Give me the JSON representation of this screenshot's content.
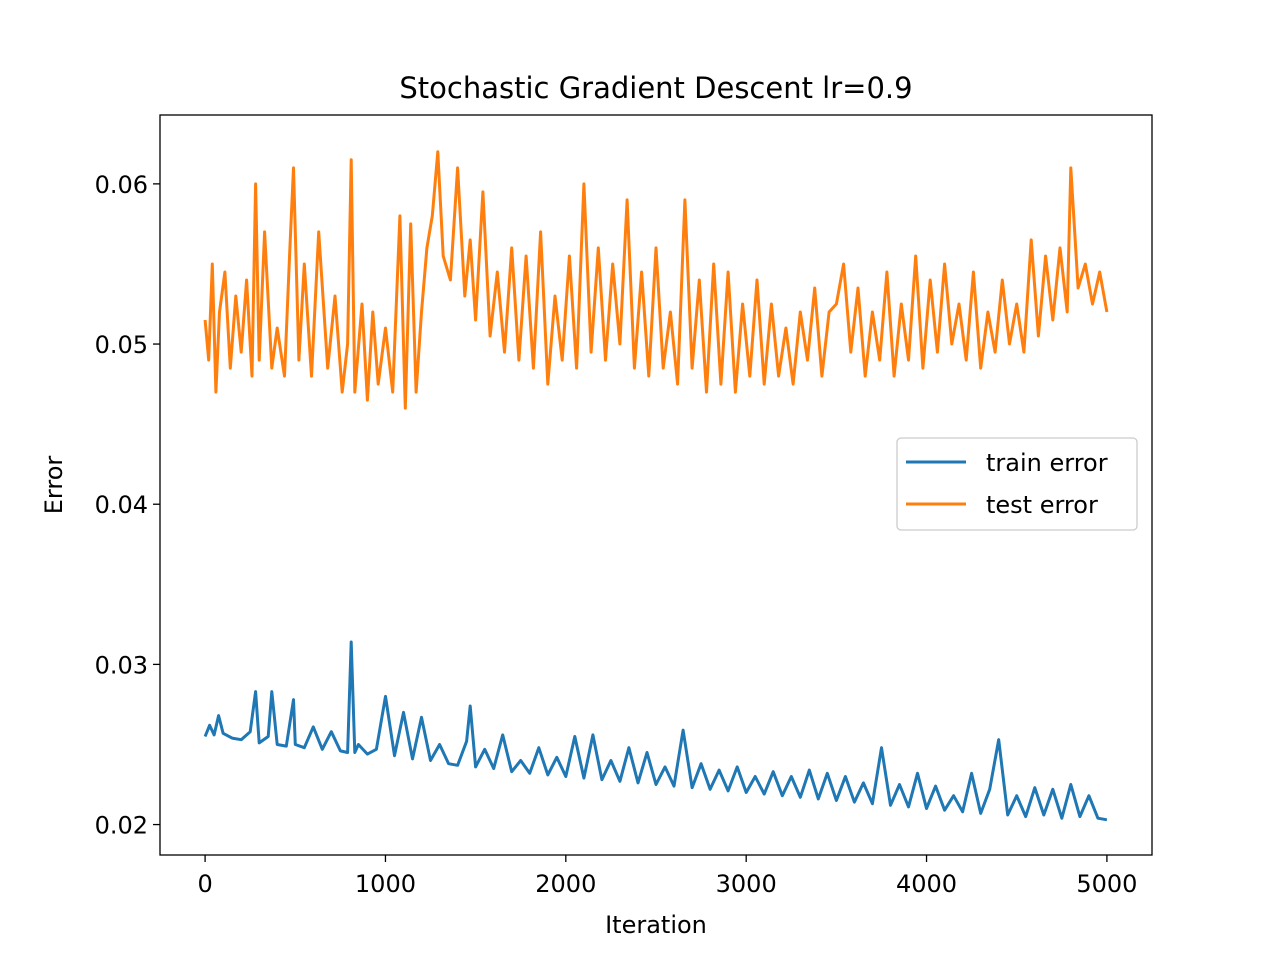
{
  "chart_data": {
    "type": "line",
    "title": "Stochastic Gradient Descent lr=0.9",
    "xlabel": "Iteration",
    "ylabel": "Error",
    "xlim": [
      -250,
      5250
    ],
    "ylim": [
      0.0181,
      0.0643
    ],
    "xticks": [
      0,
      1000,
      2000,
      3000,
      4000,
      5000
    ],
    "yticks": [
      0.02,
      0.03,
      0.04,
      0.05,
      0.06
    ],
    "xtick_labels": [
      "0",
      "1000",
      "2000",
      "3000",
      "4000",
      "5000"
    ],
    "ytick_labels": [
      "0.02",
      "0.03",
      "0.04",
      "0.05",
      "0.06"
    ],
    "grid": false,
    "legend_position": "center-right",
    "series": [
      {
        "name": "train error",
        "color": "#1f77b4",
        "x": [
          0,
          25,
          50,
          75,
          100,
          150,
          200,
          250,
          280,
          300,
          350,
          370,
          400,
          450,
          490,
          500,
          550,
          600,
          650,
          700,
          750,
          790,
          810,
          830,
          850,
          900,
          950,
          1000,
          1050,
          1100,
          1150,
          1200,
          1250,
          1300,
          1350,
          1400,
          1450,
          1470,
          1500,
          1550,
          1600,
          1650,
          1700,
          1750,
          1800,
          1850,
          1900,
          1950,
          2000,
          2050,
          2100,
          2150,
          2200,
          2250,
          2300,
          2350,
          2400,
          2450,
          2500,
          2550,
          2600,
          2650,
          2700,
          2750,
          2800,
          2850,
          2900,
          2950,
          3000,
          3050,
          3100,
          3150,
          3200,
          3250,
          3300,
          3350,
          3400,
          3450,
          3500,
          3550,
          3600,
          3650,
          3700,
          3750,
          3800,
          3850,
          3900,
          3950,
          4000,
          4050,
          4100,
          4150,
          4200,
          4250,
          4300,
          4350,
          4400,
          4450,
          4500,
          4550,
          4600,
          4650,
          4700,
          4750,
          4800,
          4850,
          4900,
          4950,
          5000
        ],
        "y": [
          0.0255,
          0.0262,
          0.0256,
          0.0268,
          0.0257,
          0.0254,
          0.0253,
          0.0258,
          0.0283,
          0.0251,
          0.0255,
          0.0283,
          0.025,
          0.0249,
          0.0278,
          0.025,
          0.0248,
          0.0261,
          0.0247,
          0.0258,
          0.0246,
          0.0245,
          0.0314,
          0.0245,
          0.025,
          0.0244,
          0.0247,
          0.028,
          0.0243,
          0.027,
          0.0241,
          0.0267,
          0.024,
          0.025,
          0.0238,
          0.0237,
          0.0252,
          0.0274,
          0.0236,
          0.0247,
          0.0235,
          0.0256,
          0.0233,
          0.024,
          0.0232,
          0.0248,
          0.0231,
          0.0242,
          0.023,
          0.0255,
          0.0229,
          0.0256,
          0.0228,
          0.024,
          0.0227,
          0.0248,
          0.0226,
          0.0245,
          0.0225,
          0.0236,
          0.0224,
          0.0259,
          0.0223,
          0.0238,
          0.0222,
          0.0234,
          0.0221,
          0.0236,
          0.022,
          0.023,
          0.0219,
          0.0233,
          0.0218,
          0.023,
          0.0217,
          0.0234,
          0.0216,
          0.0232,
          0.0215,
          0.023,
          0.0214,
          0.0226,
          0.0213,
          0.0248,
          0.0212,
          0.0225,
          0.0211,
          0.0232,
          0.021,
          0.0224,
          0.0209,
          0.0218,
          0.0208,
          0.0232,
          0.0207,
          0.0222,
          0.0253,
          0.0206,
          0.0218,
          0.0205,
          0.0223,
          0.0206,
          0.0222,
          0.0204,
          0.0225,
          0.0205,
          0.0218,
          0.0204,
          0.0203
        ]
      },
      {
        "name": "test error",
        "color": "#ff7f0e",
        "x": [
          0,
          20,
          40,
          60,
          80,
          110,
          140,
          170,
          200,
          230,
          260,
          280,
          300,
          330,
          370,
          400,
          440,
          470,
          490,
          520,
          550,
          590,
          630,
          680,
          720,
          760,
          790,
          810,
          830,
          870,
          900,
          930,
          960,
          1000,
          1040,
          1080,
          1110,
          1140,
          1170,
          1200,
          1230,
          1260,
          1290,
          1320,
          1360,
          1400,
          1440,
          1470,
          1500,
          1540,
          1580,
          1620,
          1660,
          1700,
          1740,
          1780,
          1820,
          1860,
          1900,
          1940,
          1980,
          2020,
          2060,
          2100,
          2140,
          2180,
          2220,
          2260,
          2300,
          2340,
          2380,
          2420,
          2460,
          2500,
          2540,
          2580,
          2620,
          2660,
          2700,
          2740,
          2780,
          2820,
          2860,
          2900,
          2940,
          2980,
          3020,
          3060,
          3100,
          3140,
          3180,
          3220,
          3260,
          3300,
          3340,
          3380,
          3420,
          3460,
          3500,
          3540,
          3580,
          3620,
          3660,
          3700,
          3740,
          3780,
          3820,
          3860,
          3900,
          3940,
          3980,
          4020,
          4060,
          4100,
          4140,
          4180,
          4220,
          4260,
          4300,
          4340,
          4380,
          4420,
          4460,
          4500,
          4540,
          4580,
          4620,
          4660,
          4700,
          4740,
          4780,
          4800,
          4840,
          4880,
          4920,
          4960,
          5000
        ],
        "y": [
          0.0515,
          0.049,
          0.055,
          0.047,
          0.052,
          0.0545,
          0.0485,
          0.053,
          0.0495,
          0.054,
          0.048,
          0.06,
          0.049,
          0.057,
          0.0485,
          0.051,
          0.048,
          0.056,
          0.061,
          0.049,
          0.055,
          0.048,
          0.057,
          0.0485,
          0.053,
          0.047,
          0.05,
          0.0615,
          0.047,
          0.0525,
          0.0465,
          0.052,
          0.0475,
          0.051,
          0.047,
          0.058,
          0.046,
          0.0575,
          0.047,
          0.052,
          0.056,
          0.058,
          0.062,
          0.0555,
          0.054,
          0.061,
          0.053,
          0.0565,
          0.0515,
          0.0595,
          0.0505,
          0.0545,
          0.0495,
          0.056,
          0.049,
          0.0555,
          0.0485,
          0.057,
          0.0475,
          0.053,
          0.049,
          0.0555,
          0.0485,
          0.06,
          0.0495,
          0.056,
          0.049,
          0.055,
          0.05,
          0.059,
          0.0485,
          0.0545,
          0.048,
          0.056,
          0.0485,
          0.052,
          0.0475,
          0.059,
          0.0485,
          0.054,
          0.047,
          0.055,
          0.0475,
          0.0545,
          0.047,
          0.0525,
          0.048,
          0.054,
          0.0475,
          0.0525,
          0.048,
          0.051,
          0.0475,
          0.052,
          0.049,
          0.0535,
          0.048,
          0.052,
          0.0525,
          0.055,
          0.0495,
          0.0535,
          0.048,
          0.052,
          0.049,
          0.0545,
          0.048,
          0.0525,
          0.049,
          0.0555,
          0.0485,
          0.054,
          0.0495,
          0.055,
          0.05,
          0.0525,
          0.049,
          0.0545,
          0.0485,
          0.052,
          0.0495,
          0.054,
          0.05,
          0.0525,
          0.0495,
          0.0565,
          0.0505,
          0.0555,
          0.0515,
          0.056,
          0.052,
          0.061,
          0.0535,
          0.055,
          0.0525,
          0.0545,
          0.052
        ]
      }
    ]
  }
}
